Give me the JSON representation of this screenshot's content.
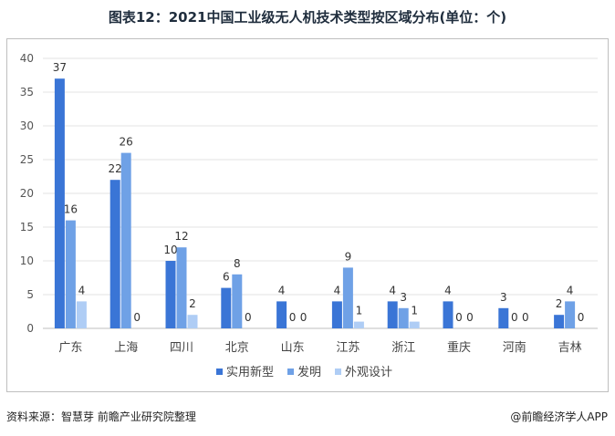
{
  "title": "图表12：2021中国工业级无人机技术类型按区域分布(单位：个)",
  "footer": {
    "source": "资料来源：智慧芽 前瞻产业研究院整理",
    "brand": "@前瞻经济学人APP"
  },
  "chart_data": {
    "type": "bar",
    "categories": [
      "广东",
      "上海",
      "四川",
      "北京",
      "山东",
      "江苏",
      "浙江",
      "重庆",
      "河南",
      "吉林"
    ],
    "series": [
      {
        "name": "实用新型",
        "color": "#3a75d6",
        "values": [
          37,
          22,
          10,
          6,
          4,
          4,
          4,
          4,
          3,
          2
        ]
      },
      {
        "name": "发明",
        "color": "#6fa1e6",
        "values": [
          16,
          26,
          12,
          8,
          0,
          9,
          3,
          0,
          0,
          4
        ]
      },
      {
        "name": "外观设计",
        "color": "#afcdf5",
        "values": [
          4,
          0,
          2,
          0,
          0,
          1,
          1,
          0,
          0,
          0
        ]
      }
    ],
    "ylim": [
      0,
      40
    ],
    "yticks": [
      0,
      5,
      10,
      15,
      20,
      25,
      30,
      35,
      40
    ],
    "grid": true,
    "legend_position": "bottom"
  }
}
